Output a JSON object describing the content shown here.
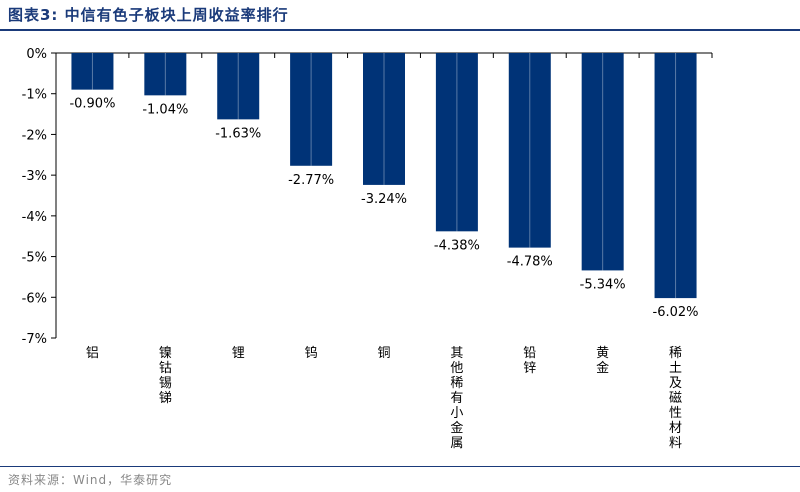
{
  "figure": {
    "title": "图表3:  中信有色子板块上周收益率排行",
    "source": "资料来源：Wind，华泰研究"
  },
  "colors": {
    "bar": "#003377",
    "title": "#1a3a7a",
    "axis": "#000000"
  },
  "chart_data": {
    "type": "bar",
    "title": "",
    "xlabel": "",
    "ylabel": "",
    "ylim": [
      -7,
      0
    ],
    "yticks": [
      0,
      -1,
      -2,
      -3,
      -4,
      -5,
      -6,
      -7
    ],
    "ytick_labels": [
      "0%",
      "-1%",
      "-2%",
      "-3%",
      "-4%",
      "-5%",
      "-6%",
      "-7%"
    ],
    "grid": false,
    "legend": "none",
    "categories": [
      "铝",
      "镍钴锡锑",
      "锂",
      "钨",
      "铜",
      "其他稀有小金属",
      "铅锌",
      "黄金",
      "稀土及磁性材料"
    ],
    "values": [
      -0.9,
      -1.04,
      -1.63,
      -2.77,
      -3.24,
      -4.38,
      -4.78,
      -5.34,
      -6.02
    ],
    "data_labels": [
      "-0.90%",
      "-1.04%",
      "-1.63%",
      "-2.77%",
      "-3.24%",
      "-4.38%",
      "-4.78%",
      "-5.34%",
      "-6.02%"
    ]
  }
}
